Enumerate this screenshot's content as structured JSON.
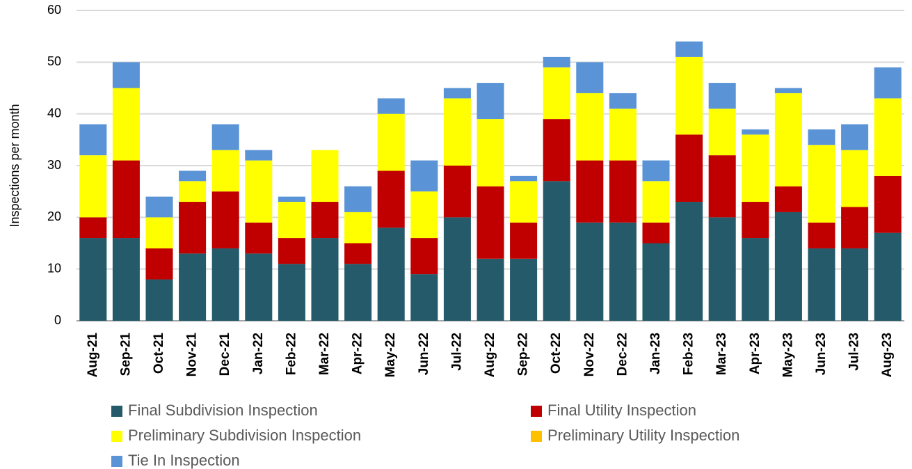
{
  "chart_data": {
    "type": "stacked_bar",
    "y_label": "Inspections per month",
    "categories": [
      "Aug-21",
      "Sep-21",
      "Oct-21",
      "Nov-21",
      "Dec-21",
      "Jan-22",
      "Feb-22",
      "Mar-22",
      "Apr-22",
      "May-22",
      "Jun-22",
      "Jul-22",
      "Aug-22",
      "Sep-22",
      "Oct-22",
      "Nov-22",
      "Dec-22",
      "Jan-23",
      "Feb-23",
      "Mar-23",
      "Apr-23",
      "May-23",
      "Jun-23",
      "Jul-23",
      "Aug-23"
    ],
    "series": [
      {
        "name": "Final Subdivision Inspection",
        "color": "#245a69",
        "values": [
          16,
          16,
          8,
          13,
          14,
          13,
          11,
          16,
          11,
          18,
          9,
          20,
          12,
          12,
          27,
          19,
          19,
          15,
          23,
          20,
          16,
          21,
          14,
          14,
          17
        ]
      },
      {
        "name": "Final Utility Inspection",
        "color": "#c00000",
        "values": [
          4,
          15,
          6,
          10,
          11,
          6,
          5,
          7,
          4,
          11,
          7,
          10,
          14,
          7,
          12,
          12,
          12,
          4,
          13,
          12,
          7,
          5,
          5,
          8,
          11
        ]
      },
      {
        "name": "Preliminary Subdivision Inspection",
        "color": "#ffff00",
        "values": [
          12,
          14,
          6,
          4,
          8,
          12,
          7,
          10,
          6,
          11,
          9,
          13,
          13,
          8,
          10,
          13,
          10,
          8,
          15,
          9,
          13,
          18,
          15,
          11,
          15
        ]
      },
      {
        "name": "Preliminary Utility Inspection",
        "color": "#ffc000",
        "values": [
          0,
          0,
          0,
          0,
          0,
          0,
          0,
          0,
          0,
          0,
          0,
          0,
          0,
          0,
          0,
          0,
          0,
          0,
          0,
          0,
          0,
          0,
          0,
          0,
          0
        ]
      },
      {
        "name": "Tie In Inspection",
        "color": "#5a93d6",
        "values": [
          6,
          5,
          4,
          2,
          5,
          2,
          1,
          0,
          5,
          3,
          6,
          2,
          7,
          1,
          2,
          6,
          3,
          4,
          3,
          5,
          1,
          1,
          3,
          5,
          6
        ]
      }
    ],
    "ylim": [
      0,
      60
    ],
    "yticks": [
      0,
      10,
      20,
      30,
      40,
      50,
      60
    ],
    "grid": true
  }
}
